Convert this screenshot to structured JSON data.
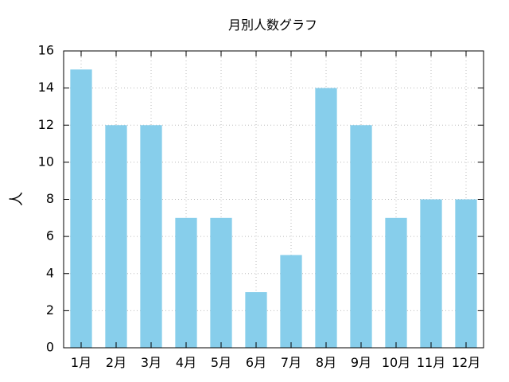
{
  "chart_data": {
    "type": "bar",
    "title": "月別人数グラフ",
    "xlabel": "",
    "ylabel": "人",
    "categories": [
      "1月",
      "2月",
      "3月",
      "4月",
      "5月",
      "6月",
      "7月",
      "8月",
      "9月",
      "10月",
      "11月",
      "12月"
    ],
    "values": [
      15,
      12,
      12,
      7,
      7,
      3,
      5,
      14,
      12,
      7,
      8,
      8
    ],
    "ylim": [
      0,
      16
    ],
    "yticks": [
      0,
      2,
      4,
      6,
      8,
      10,
      12,
      14,
      16
    ],
    "grid": true,
    "legend": "none",
    "bar_color": "#87ceeb",
    "grid_color": "#bbbbbb"
  }
}
